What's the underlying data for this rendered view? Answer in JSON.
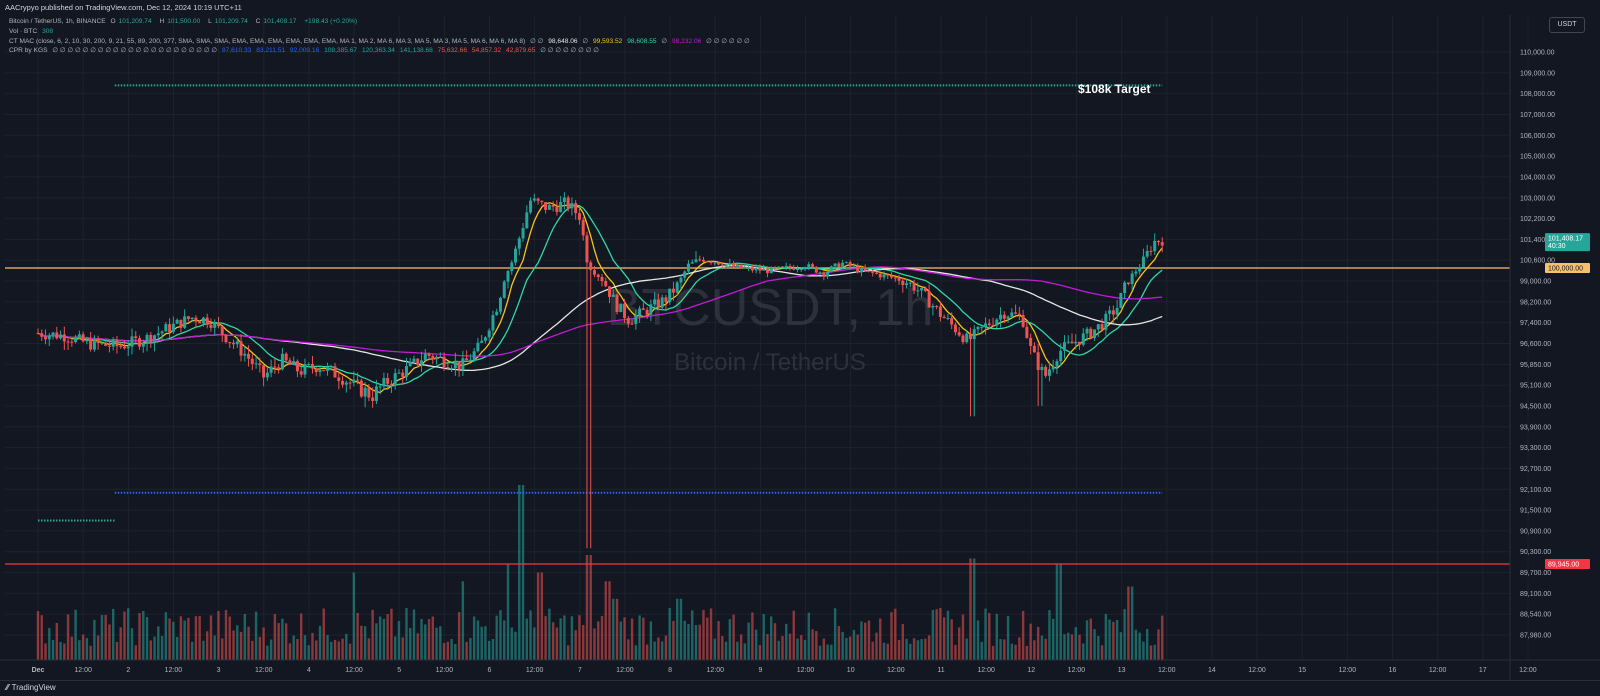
{
  "publish_info": "AACrypyo published on TradingView.com, Dec 12, 2024 10:19 UTC+11",
  "legend": {
    "symbol_line": {
      "symbol": "Bitcoin / TetherUS, 1h, BINANCE",
      "o_label": "O",
      "o": "101,209.74",
      "h_label": "H",
      "h": "101,500.00",
      "l_label": "L",
      "l": "101,209.74",
      "c_label": "C",
      "c": "101,408.17",
      "change": "+198.43 (+0.20%)"
    },
    "volume_line": {
      "label": "Vol · BTC",
      "value": "308"
    },
    "mac_line": {
      "label": "CT MAC (close, 6, 2, 10, 30, 200, 9, 21, 55, 89, 200, 377, SMA, SMA, SMA, EMA, EMA, EMA, EMA, EMA, EMA, MA 1, MA 2, MA 6, MA 3, MA 5, MA 3, MA 5, MA 6, MA 6, MA 8)",
      "pre": "∅ ∅",
      "v1": "98,648.06",
      "sep1": "∅",
      "v2": "99,593.52",
      "v3": "98,608.55",
      "sep2": "∅",
      "v4": "98,232.06",
      "post": "∅ ∅ ∅ ∅ ∅ ∅"
    },
    "cpr_line": {
      "label": "CPR by KGS",
      "empties": "∅ ∅ ∅ ∅ ∅ ∅ ∅ ∅ ∅ ∅ ∅ ∅ ∅ ∅ ∅ ∅ ∅ ∅ ∅ ∅ ∅ ∅",
      "v1": "87,610.33",
      "v2": "83,211.51",
      "v3": "92,009.16",
      "v4": "108,385.67",
      "v5": "120,363.34",
      "v6": "141,138.68",
      "v7": "75,632.66",
      "v8": "54,857.32",
      "v9": "42,879.65",
      "post": "∅ ∅ ∅ ∅ ∅ ∅ ∅ ∅"
    }
  },
  "currency_button": "USDT",
  "watermark": {
    "title": "BTCUSDT, 1h",
    "subtitle": "Bitcoin / TetherUS"
  },
  "annotations": {
    "target_label": "$108k Target"
  },
  "footer": {
    "brand": "TradingView"
  },
  "colors": {
    "background": "#131722",
    "up": "#26a69a",
    "down": "#ef5350",
    "target_line": "#26a69a",
    "support_line": "#2962ff",
    "resistance_line": "#f7c06b",
    "low_line": "#f23645",
    "ma_yellow": "#f5c518",
    "ma_green": "#2ed8a3",
    "ma_white": "#e6e6e6",
    "ma_magenta": "#c21bd6"
  },
  "chart_data": {
    "type": "candlestick",
    "ylim": [
      87500,
      111000
    ],
    "y_ticks": [
      "110,000.00",
      "109,000.00",
      "108,000.00",
      "107,000.00",
      "106,000.00",
      "105,000.00",
      "104,000.00",
      "103,000.00",
      "102,200.00",
      "101,400.00",
      "100,600.00",
      "99,000.00",
      "98,200.00",
      "97,400.00",
      "96,600.00",
      "95,850.00",
      "95,100.00",
      "94,500.00",
      "93,900.00",
      "93,300.00",
      "92,700.00",
      "92,100.00",
      "91,500.00",
      "90,900.00",
      "90,300.00",
      "89,700.00",
      "89,100.00",
      "88,540.00",
      "87,980.00"
    ],
    "x_ticks": [
      "Dec",
      "12:00",
      "2",
      "12:00",
      "3",
      "12:00",
      "4",
      "12:00",
      "5",
      "12:00",
      "6",
      "12:00",
      "7",
      "12:00",
      "8",
      "12:00",
      "9",
      "12:00",
      "10",
      "12:00",
      "11",
      "12:00",
      "12",
      "12:00",
      "13",
      "12:00",
      "14",
      "12:00",
      "15",
      "12:00",
      "16",
      "12:00",
      "17",
      "12:00"
    ],
    "price_tags": [
      {
        "text": "101,408.17",
        "sub": "40:30",
        "value": 101408.17,
        "color": "#26a69a"
      },
      {
        "text": "100,000.00",
        "value": 100000,
        "color": "#f7c06b"
      },
      {
        "text": "89,945.00",
        "value": 89945,
        "color": "#f23645"
      }
    ],
    "horizontal_lines": [
      {
        "name": "target",
        "value": 108400,
        "style": "dotted",
        "x_from_day": 0.85,
        "x_to_day": 12.45,
        "color": "#26a69a"
      },
      {
        "name": "support",
        "value": 92000,
        "style": "dotted",
        "x_from_day": 0.85,
        "x_to_day": 12.45,
        "color": "#2962ff"
      },
      {
        "name": "prior-support",
        "value": 91200,
        "style": "dotted",
        "x_from_day": 0.0,
        "x_to_day": 0.85,
        "color": "#26a69a"
      },
      {
        "name": "resistance",
        "value": 100000,
        "style": "solid",
        "color": "#f7c06b"
      },
      {
        "name": "low",
        "value": 89945,
        "style": "solid",
        "color": "#f23645"
      }
    ],
    "keypoints": [
      [
        0.0,
        97000
      ],
      [
        0.3,
        96900
      ],
      [
        0.55,
        96600
      ],
      [
        0.9,
        96500
      ],
      [
        1.2,
        96800
      ],
      [
        1.45,
        97200
      ],
      [
        1.7,
        97600
      ],
      [
        1.9,
        97500
      ],
      [
        2.1,
        96800
      ],
      [
        2.3,
        96200
      ],
      [
        2.5,
        95400
      ],
      [
        2.7,
        96000
      ],
      [
        2.9,
        95600
      ],
      [
        3.1,
        95800
      ],
      [
        3.3,
        95500
      ],
      [
        3.5,
        95100
      ],
      [
        3.7,
        94800
      ],
      [
        3.9,
        95300
      ],
      [
        4.1,
        95700
      ],
      [
        4.3,
        96200
      ],
      [
        4.5,
        96000
      ],
      [
        4.7,
        95800
      ],
      [
        4.9,
        96500
      ],
      [
        5.1,
        98200
      ],
      [
        5.25,
        100500
      ],
      [
        5.45,
        102900
      ],
      [
        5.65,
        102600
      ],
      [
        5.85,
        102800
      ],
      [
        6.0,
        102300
      ],
      [
        6.1,
        100200
      ],
      [
        6.25,
        99100
      ],
      [
        6.4,
        98100
      ],
      [
        6.55,
        97500
      ],
      [
        6.75,
        97900
      ],
      [
        6.95,
        98300
      ],
      [
        7.1,
        98900
      ],
      [
        7.2,
        100200
      ],
      [
        7.35,
        100700
      ],
      [
        7.5,
        100500
      ],
      [
        7.7,
        100100
      ],
      [
        7.9,
        99900
      ],
      [
        8.1,
        99800
      ],
      [
        8.3,
        100000
      ],
      [
        8.5,
        100200
      ],
      [
        8.7,
        99600
      ],
      [
        8.9,
        100400
      ],
      [
        9.1,
        99800
      ],
      [
        9.3,
        99500
      ],
      [
        9.5,
        99200
      ],
      [
        9.7,
        98800
      ],
      [
        9.85,
        98300
      ],
      [
        10.0,
        97700
      ],
      [
        10.15,
        97200
      ],
      [
        10.3,
        96700
      ],
      [
        10.5,
        97300
      ],
      [
        10.7,
        97800
      ],
      [
        10.9,
        97600
      ],
      [
        11.0,
        96300
      ],
      [
        11.15,
        95400
      ],
      [
        11.3,
        96300
      ],
      [
        11.5,
        96700
      ],
      [
        11.65,
        97000
      ],
      [
        11.8,
        97400
      ],
      [
        11.95,
        98000
      ],
      [
        12.1,
        99300
      ],
      [
        12.25,
        100600
      ],
      [
        12.35,
        101300
      ],
      [
        12.45,
        101408
      ]
    ],
    "volume_spikes": [
      {
        "day": 3.5,
        "vol": 0.5
      },
      {
        "day": 4.7,
        "vol": 0.45
      },
      {
        "day": 5.2,
        "vol": 0.55
      },
      {
        "day": 5.35,
        "vol": 1.0
      },
      {
        "day": 5.55,
        "vol": 0.5
      },
      {
        "day": 6.1,
        "vol": 0.6
      },
      {
        "day": 6.3,
        "vol": 0.45
      },
      {
        "day": 6.4,
        "vol": 0.35
      },
      {
        "day": 7.1,
        "vol": 0.35
      },
      {
        "day": 10.35,
        "vol": 0.58
      },
      {
        "day": 11.3,
        "vol": 0.55
      },
      {
        "day": 12.1,
        "vol": 0.42
      }
    ]
  }
}
